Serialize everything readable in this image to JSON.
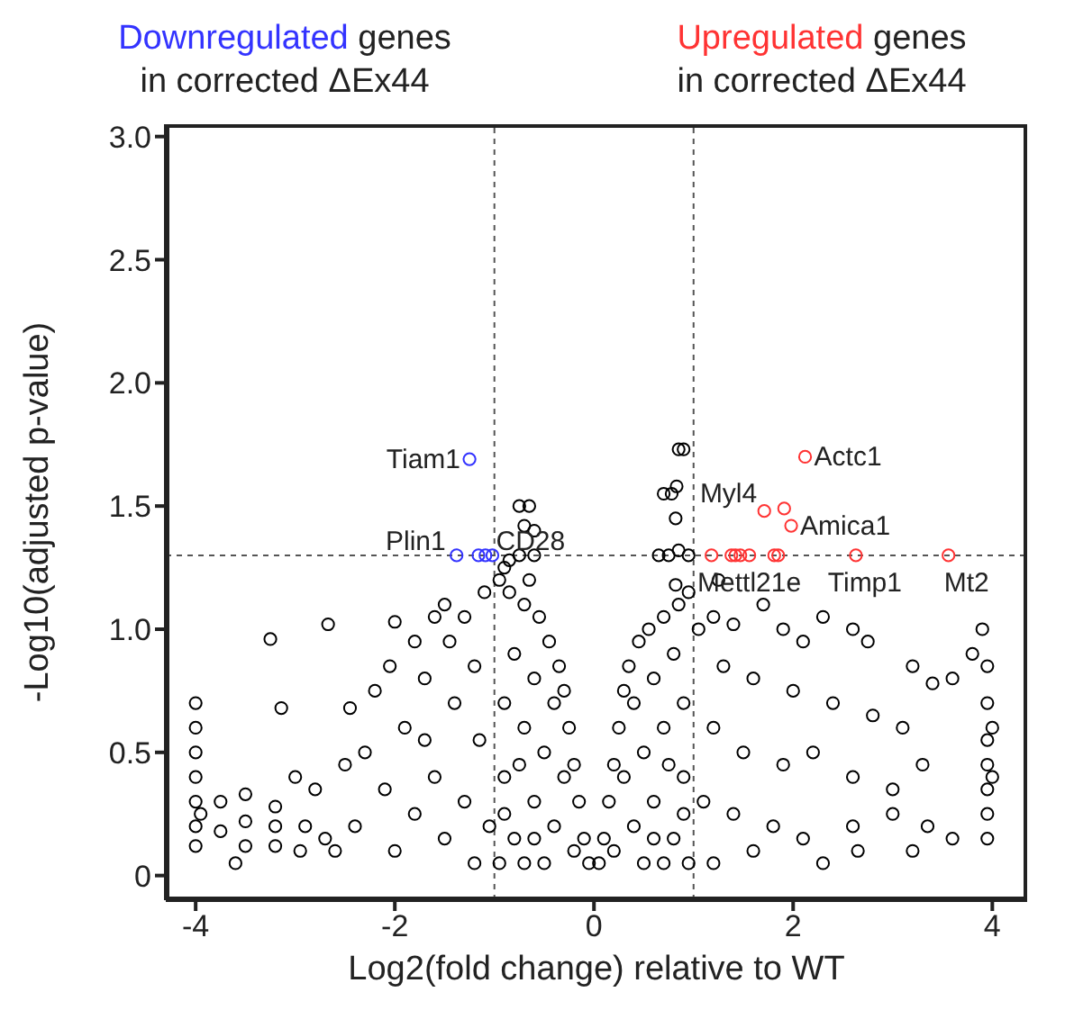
{
  "chart_data": {
    "type": "scatter",
    "xlabel": "Log2(fold change) relative to WT",
    "ylabel": "-Log10(adjusted p-value)",
    "xlim": [
      -4.3,
      4.35
    ],
    "ylim": [
      -0.1,
      3.05
    ],
    "xticks": [
      -4,
      -2,
      0,
      2,
      4
    ],
    "yticks": [
      0,
      0.5,
      {
        "value": 1,
        "label": "1.0"
      },
      1.5,
      {
        "value": 2,
        "label": "2.0"
      },
      2.5,
      {
        "value": 3,
        "label": "3.0"
      }
    ],
    "marker": "circle",
    "grid": false,
    "series": [
      {
        "color": "#000000",
        "x": [
          0.05,
          0.1,
          0.15,
          0.2,
          0.25,
          0.3,
          0.35,
          0.45,
          0.55,
          0.7,
          0.85,
          0.95,
          0.2,
          0.4,
          0.6,
          0.8,
          0.9,
          0.5,
          0.7,
          0.4,
          0.6,
          0.8,
          0.3,
          0.9,
          0.95,
          0.7,
          0.5,
          0.6,
          0.9,
          0.75,
          -0.05,
          -0.1,
          -0.15,
          -0.2,
          -0.25,
          -0.3,
          -0.35,
          -0.45,
          -0.55,
          -0.7,
          -0.85,
          -0.95,
          -0.2,
          -0.4,
          -0.6,
          -0.8,
          -0.9,
          -0.5,
          -0.7,
          -0.4,
          -0.6,
          -0.8,
          -0.3,
          -0.9,
          -0.95,
          -0.7,
          -0.5,
          -0.6,
          -0.9,
          -0.75,
          -0.75,
          -0.65,
          -0.7,
          -0.6,
          -0.85,
          -0.75,
          -0.6,
          -0.65,
          -0.9,
          0.85,
          0.9,
          0.7,
          0.78,
          0.83,
          0.82,
          0.65,
          0.75,
          0.85,
          0.95,
          0.82,
          -1.1,
          -1.3,
          -1.5,
          -1.6,
          -1.45,
          -1.8,
          -2.05,
          -2.2,
          -1.7,
          -1.4,
          -1.2,
          -1.9,
          -2.3,
          -2.5,
          -2.1,
          -1.6,
          -1.3,
          -1.8,
          -2.4,
          -2.8,
          -2.9,
          -1.5,
          -1.2,
          -2.0,
          -2.6,
          -3.0,
          -3.25,
          -2.67,
          -3.14,
          -2.45,
          -2.0,
          -1.15,
          -1.7,
          -2.7,
          -1.05,
          -4.0,
          -4.0,
          -4.0,
          -4.0,
          -4.0,
          -4.0,
          -4.0,
          -3.95,
          -3.75,
          -3.75,
          -3.5,
          -3.5,
          -3.5,
          -3.2,
          -3.2,
          -3.2,
          -2.95,
          -3.6,
          1.05,
          1.2,
          1.4,
          1.7,
          1.25,
          1.9,
          2.3,
          2.1,
          2.6,
          2.75,
          3.2,
          3.4,
          3.6,
          3.8,
          3.9,
          1.3,
          1.6,
          2.0,
          2.4,
          2.8,
          3.1,
          1.2,
          1.5,
          1.9,
          2.2,
          2.6,
          3.0,
          3.3,
          1.1,
          1.4,
          1.8,
          2.1,
          2.6,
          3.0,
          3.35,
          3.6,
          1.2,
          1.6,
          2.3,
          2.65,
          3.2,
          3.95,
          3.95,
          3.95,
          3.95,
          3.95,
          3.95,
          3.95,
          4.0,
          4.0
        ],
        "values": [
          0.05,
          0.15,
          0.3,
          0.45,
          0.6,
          0.75,
          0.85,
          0.95,
          1.0,
          1.05,
          1.1,
          1.15,
          0.1,
          0.2,
          0.3,
          0.15,
          0.4,
          0.5,
          0.6,
          0.7,
          0.8,
          0.9,
          0.4,
          0.7,
          0.05,
          0.05,
          0.05,
          0.15,
          0.25,
          0.45,
          0.05,
          0.15,
          0.3,
          0.45,
          0.6,
          0.75,
          0.85,
          0.95,
          1.05,
          1.1,
          1.15,
          1.2,
          0.1,
          0.2,
          0.3,
          0.15,
          0.4,
          0.5,
          0.6,
          0.7,
          0.8,
          0.9,
          0.4,
          0.7,
          0.05,
          0.05,
          0.05,
          0.15,
          0.25,
          0.45,
          1.5,
          1.5,
          1.42,
          1.4,
          1.28,
          1.3,
          1.3,
          1.2,
          1.25,
          1.73,
          1.73,
          1.55,
          1.55,
          1.58,
          1.45,
          1.3,
          1.3,
          1.32,
          1.3,
          1.18,
          1.15,
          1.05,
          1.1,
          1.05,
          0.95,
          0.95,
          0.85,
          0.75,
          0.8,
          0.7,
          0.85,
          0.6,
          0.5,
          0.45,
          0.35,
          0.4,
          0.3,
          0.25,
          0.2,
          0.35,
          0.2,
          0.15,
          0.05,
          0.1,
          0.1,
          0.4,
          0.96,
          1.02,
          0.68,
          0.68,
          1.03,
          0.55,
          0.55,
          0.15,
          0.2,
          0.7,
          0.6,
          0.5,
          0.4,
          0.3,
          0.2,
          0.12,
          0.25,
          0.3,
          0.18,
          0.33,
          0.22,
          0.12,
          0.28,
          0.2,
          0.12,
          0.1,
          0.05,
          1.0,
          1.05,
          1.02,
          1.1,
          1.2,
          1.0,
          1.05,
          0.95,
          1.0,
          0.95,
          0.85,
          0.78,
          0.8,
          0.9,
          1.0,
          0.85,
          0.8,
          0.75,
          0.7,
          0.65,
          0.6,
          0.6,
          0.5,
          0.45,
          0.5,
          0.4,
          0.35,
          0.45,
          0.3,
          0.25,
          0.2,
          0.15,
          0.2,
          0.25,
          0.2,
          0.15,
          0.05,
          0.1,
          0.05,
          0.1,
          0.1,
          0.85,
          0.7,
          0.55,
          0.45,
          0.35,
          0.25,
          0.15,
          0.6,
          0.4
        ]
      },
      {
        "name": "Downregulated",
        "color": "#3333ff",
        "x": [
          -1.25,
          -1.38,
          -1.16,
          -1.09,
          -1.02
        ],
        "values": [
          1.69,
          1.3,
          1.3,
          1.3,
          1.3
        ]
      },
      {
        "name": "Upregulated",
        "color": "#ff3333",
        "x": [
          2.12,
          1.71,
          1.91,
          1.98,
          1.18,
          1.38,
          1.42,
          1.47,
          1.56,
          1.81,
          1.85,
          2.63,
          3.56
        ],
        "values": [
          1.7,
          1.48,
          1.49,
          1.42,
          1.3,
          1.3,
          1.3,
          1.3,
          1.3,
          1.3,
          1.3,
          1.3,
          1.3
        ]
      }
    ],
    "ref_lines": [
      {
        "axis": "x",
        "value": -1,
        "color": "#555555",
        "line_style": "dashed"
      },
      {
        "axis": "x",
        "value": 1,
        "color": "#555555",
        "line_style": "dashed"
      },
      {
        "axis": "y",
        "value": 1.3,
        "color": "#555555",
        "line_style": "dashed"
      }
    ],
    "annotations": [
      "genes",
      "in corrected ΔEx44",
      "genes",
      "in corrected ΔEx44",
      {
        "text": "Tiam1",
        "x": -1.25,
        "y": 1.69
      },
      {
        "text": "Plin1",
        "x": -1.38,
        "y": 1.3
      },
      {
        "text": "CD28",
        "x": -1.02,
        "y": 1.3
      },
      {
        "text": "Myl4",
        "x": 1.71,
        "y": 1.48
      },
      {
        "text": "Actc1",
        "x": 2.12,
        "y": 1.7
      },
      {
        "text": "Amica1",
        "x": 1.98,
        "y": 1.42
      },
      {
        "text": "Mettl21e",
        "x": 1.56,
        "y": 1.3
      },
      {
        "text": "Timp1",
        "x": 2.63,
        "y": 1.3
      },
      {
        "text": "Mt2",
        "x": 3.56,
        "y": 1.3
      }
    ]
  }
}
